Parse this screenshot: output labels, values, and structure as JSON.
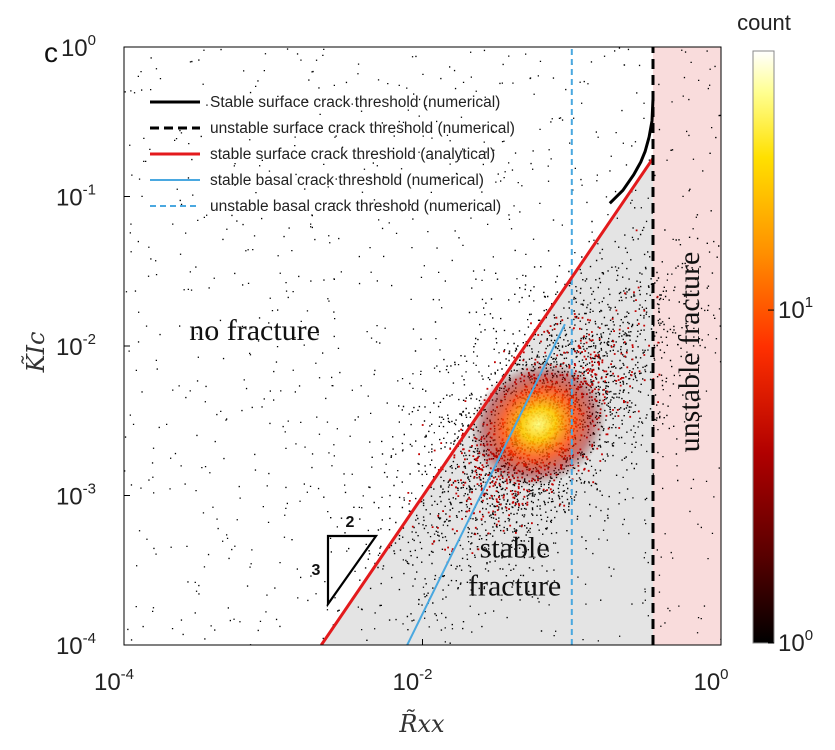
{
  "panel_label": "c",
  "chart_data": {
    "type": "scatter",
    "title": "",
    "xlabel": "R̃xx",
    "ylabel": "K̃Ic",
    "xscale": "log",
    "yscale": "log",
    "xlim": [
      0.0001,
      1
    ],
    "ylim": [
      0.0001,
      1
    ],
    "x_ticks": [
      {
        "mantissa": "10",
        "exponent": "-4",
        "value": 0.0001
      },
      {
        "mantissa": "10",
        "exponent": "-2",
        "value": 0.01
      },
      {
        "mantissa": "10",
        "exponent": "0",
        "value": 1
      }
    ],
    "y_ticks": [
      {
        "mantissa": "10",
        "exponent": "0",
        "value": 1
      },
      {
        "mantissa": "10",
        "exponent": "-1",
        "value": 0.1
      },
      {
        "mantissa": "10",
        "exponent": "-2",
        "value": 0.01
      },
      {
        "mantissa": "10",
        "exponent": "-3",
        "value": 0.001
      },
      {
        "mantissa": "10",
        "exponent": "-4",
        "value": 0.0001
      }
    ],
    "regions": [
      {
        "label": "no fracture",
        "x": 0.00075,
        "y": 0.011
      },
      {
        "label_lines": [
          "stable",
          "fracture"
        ],
        "x": 0.06,
        "y": 0.00033
      },
      {
        "label": "unstable fracture",
        "xrange": [
          0.35,
          1
        ],
        "color": "#f9dcdc"
      }
    ],
    "stable_region_color": "#e4e4e4",
    "series": [
      {
        "name": "Stable surface crack threshold (numerical)",
        "style": "solid",
        "color": "#000000",
        "x": [
          0.18,
          0.22,
          0.26,
          0.29,
          0.31,
          0.33,
          0.345,
          0.35
        ],
        "y": [
          0.09,
          0.11,
          0.14,
          0.17,
          0.2,
          0.25,
          0.32,
          0.45
        ]
      },
      {
        "name": "unstable surface crack threshold (numerical)",
        "style": "dashed",
        "color": "#000000",
        "x": [
          0.35,
          0.35
        ],
        "y": [
          0.0001,
          1
        ]
      },
      {
        "name": "stable surface crack threshold (analytical)",
        "style": "solid",
        "color": "#e31a1c",
        "x": [
          0.0021,
          0.35
        ],
        "y": [
          0.0001,
          0.18
        ]
      },
      {
        "name": "stable basal crack threshold (numerical)",
        "style": "solid",
        "color": "#4aa8e0",
        "x": [
          0.0079,
          0.09
        ],
        "y": [
          0.0001,
          0.014
        ]
      },
      {
        "name": "unstable basal crack threshold (numerical)",
        "style": "dashed",
        "color": "#4aa8e0",
        "x": [
          0.1,
          0.1
        ],
        "y": [
          0.0001,
          1
        ]
      }
    ],
    "legend_position": "top-left",
    "slope_triangle": {
      "run_label": "2",
      "rise_label": "3"
    },
    "density": {
      "description_center": {
        "x": 0.06,
        "y": 0.003
      },
      "colorbar": {
        "title": "count",
        "scale": "log",
        "ticks": [
          {
            "mantissa": "10",
            "exponent": "1",
            "value": 10
          },
          {
            "mantissa": "10",
            "exponent": "0",
            "value": 1
          }
        ],
        "colormap": [
          "#000000",
          "#5a0000",
          "#b00000",
          "#ff3000",
          "#ff9000",
          "#ffe000",
          "#ffff90",
          "#ffffff"
        ]
      }
    }
  }
}
